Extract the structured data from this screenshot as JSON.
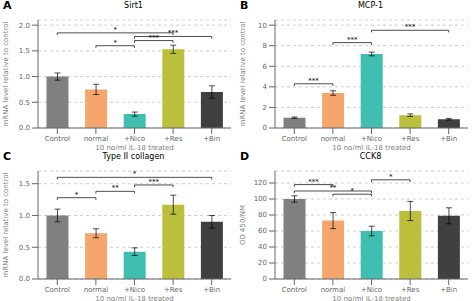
{
  "chart_data": [
    {
      "type": "bar",
      "panel": "A",
      "title": "Sirt1",
      "ylabel": "mRNA level relative to control",
      "xlabel": "10 ng/ml IL-1β treated",
      "categories": [
        "Control",
        "normal",
        "+Nico",
        "+Res",
        "+Bin"
      ],
      "values": [
        1.0,
        0.75,
        0.27,
        1.53,
        0.7
      ],
      "errors": [
        0.07,
        0.1,
        0.04,
        0.08,
        0.12
      ],
      "colors": [
        "#808080",
        "#F5A66D",
        "#40BFB0",
        "#BBBF3C",
        "#404040"
      ],
      "ylim": [
        0,
        2.1
      ],
      "yticks": [
        {
          "value": 0.0,
          "label": "0.0"
        },
        {
          "value": 0.5,
          "label": "0.5"
        },
        {
          "value": 1.0,
          "label": "1.0"
        },
        {
          "value": 1.5,
          "label": "1.5"
        },
        {
          "value": 2.0,
          "label": "2.0"
        }
      ],
      "grid": true,
      "annotations": [
        {
          "text": "*",
          "from": "normal",
          "to": "+Nico",
          "y": 1.6
        },
        {
          "text": "***",
          "from": "+Nico",
          "to": "+Res",
          "y": 1.7
        },
        {
          "text": "*",
          "from": "Control",
          "to": "+Res",
          "y": 1.85
        },
        {
          "text": "***",
          "from": "+Nico",
          "to": "+Bin",
          "y": 1.78
        }
      ]
    },
    {
      "type": "bar",
      "panel": "B",
      "title": "MCP-1",
      "ylabel": "mRNA level relative to control",
      "xlabel": "10 ng/ml IL-1β treated",
      "categories": [
        "Control",
        "normal",
        "+Nico",
        "+Res",
        "+Bin"
      ],
      "values": [
        1.0,
        3.4,
        7.2,
        1.25,
        0.85
      ],
      "errors": [
        0.07,
        0.22,
        0.18,
        0.12,
        0.08
      ],
      "colors": [
        "#808080",
        "#F5A66D",
        "#40BFB0",
        "#BBBF3C",
        "#404040"
      ],
      "ylim": [
        0,
        10.5
      ],
      "yticks": [
        0,
        2,
        4,
        6,
        8,
        10
      ],
      "grid": true,
      "annotations": [
        {
          "text": "***",
          "from": "Control",
          "to": "normal",
          "y": 4.3
        },
        {
          "text": "***",
          "from": "normal",
          "to": "+Nico",
          "y": 8.3
        },
        {
          "text": "***",
          "from": "+Nico",
          "to": "+Bin",
          "y": 9.5
        }
      ]
    },
    {
      "type": "bar",
      "panel": "C",
      "title": "Type II collagen",
      "ylabel": "mRNA level relative to control",
      "xlabel": "10 ng/ml IL-1β treated",
      "categories": [
        "Control",
        "normal",
        "+Nico",
        "+Res",
        "+Bin"
      ],
      "values": [
        1.0,
        0.72,
        0.43,
        1.17,
        0.9
      ],
      "errors": [
        0.1,
        0.07,
        0.06,
        0.15,
        0.1
      ],
      "colors": [
        "#808080",
        "#F5A66D",
        "#40BFB0",
        "#BBBF3C",
        "#404040"
      ],
      "ylim": [
        0,
        1.7
      ],
      "yticks": [
        {
          "value": 0.0,
          "label": "0.0"
        },
        {
          "value": 0.5,
          "label": "0.5"
        },
        {
          "value": 1.0,
          "label": "1.0"
        },
        {
          "value": 1.5,
          "label": "1.5"
        }
      ],
      "grid": true,
      "annotations": [
        {
          "text": "*",
          "from": "Control",
          "to": "normal",
          "y": 1.28
        },
        {
          "text": "**",
          "from": "normal",
          "to": "+Nico",
          "y": 1.38
        },
        {
          "text": "***",
          "from": "+Nico",
          "to": "+Res",
          "y": 1.48
        },
        {
          "text": "*",
          "from": "Control",
          "to": "+Bin",
          "y": 1.6
        }
      ]
    },
    {
      "type": "bar",
      "panel": "D",
      "title": "CCK8",
      "ylabel": "OD 450/NM",
      "xlabel": "10 ng/ml IL-1β treated",
      "categories": [
        "Control",
        "normal",
        "+Nico",
        "+Res",
        "+Bin"
      ],
      "values": [
        100,
        73,
        60,
        85,
        79
      ],
      "errors": [
        4,
        10,
        6,
        12,
        10
      ],
      "colors": [
        "#808080",
        "#F5A66D",
        "#40BFB0",
        "#BBBF3C",
        "#404040"
      ],
      "ylim": [
        0,
        135
      ],
      "yticks": [
        0,
        20,
        40,
        60,
        80,
        100,
        120
      ],
      "grid": true,
      "annotations": [
        {
          "text": "***",
          "from": "Control",
          "to": "normal",
          "y": 118
        },
        {
          "text": "*",
          "from": "normal",
          "to": "+Nico",
          "y": 106
        },
        {
          "text": "**",
          "from": "Control",
          "to": "+Nico",
          "y": 110
        },
        {
          "text": "*",
          "from": "+Nico",
          "to": "+Res",
          "y": 124
        }
      ]
    }
  ]
}
